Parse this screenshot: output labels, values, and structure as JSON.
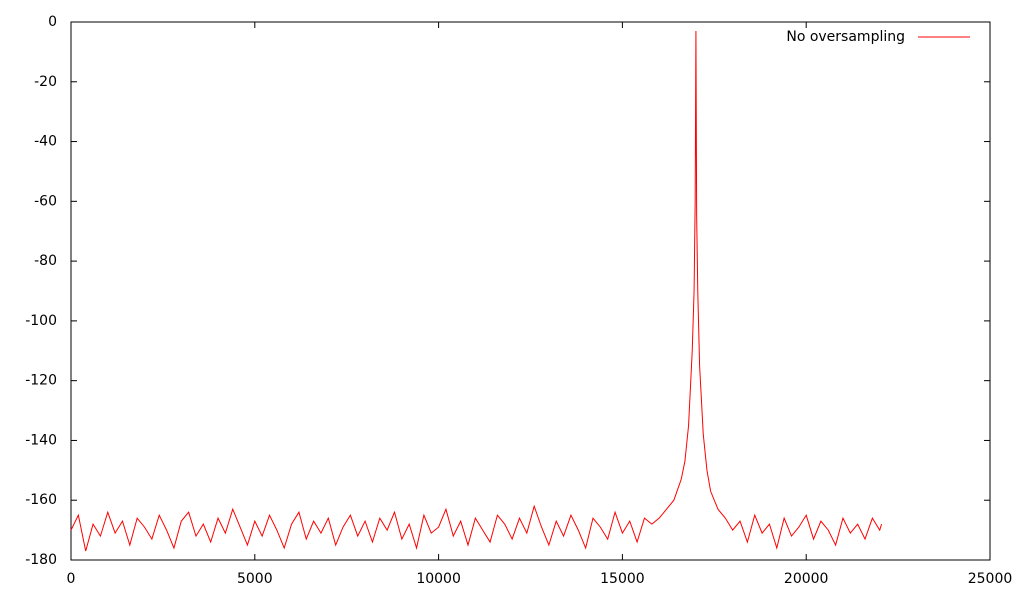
{
  "chart_data": {
    "type": "line",
    "xlim": [
      0,
      25000
    ],
    "xticks": [
      0,
      5000,
      10000,
      15000,
      20000,
      25000
    ],
    "ylim": [
      -180,
      0
    ],
    "yticks": [
      0,
      -20,
      -40,
      -60,
      -80,
      -100,
      -120,
      -140,
      -160,
      -180
    ],
    "grid": false,
    "legend": "top-right",
    "x": [
      0,
      200,
      400,
      600,
      800,
      1000,
      1200,
      1400,
      1600,
      1800,
      2000,
      2200,
      2400,
      2600,
      2800,
      3000,
      3200,
      3400,
      3600,
      3800,
      4000,
      4200,
      4400,
      4600,
      4800,
      5000,
      5200,
      5400,
      5600,
      5800,
      6000,
      6200,
      6400,
      6600,
      6800,
      7000,
      7200,
      7400,
      7600,
      7800,
      8000,
      8200,
      8400,
      8600,
      8800,
      9000,
      9200,
      9400,
      9600,
      9800,
      10000,
      10200,
      10400,
      10600,
      10800,
      11000,
      11200,
      11400,
      11600,
      11800,
      12000,
      12200,
      12400,
      12600,
      12800,
      13000,
      13200,
      13400,
      13600,
      13800,
      14000,
      14200,
      14400,
      14600,
      14800,
      15000,
      15200,
      15400,
      15600,
      15800,
      16000,
      16200,
      16400,
      16600,
      16700,
      16800,
      16900,
      16950,
      16980,
      17000,
      17020,
      17050,
      17100,
      17200,
      17300,
      17400,
      17600,
      17800,
      18000,
      18200,
      18400,
      18600,
      18800,
      19000,
      19200,
      19400,
      19600,
      19800,
      20000,
      20200,
      20400,
      20600,
      20800,
      21000,
      21200,
      21400,
      21600,
      21800,
      22000,
      22050
    ],
    "series": [
      {
        "name": "No oversampling",
        "color": "#ff0000",
        "values": [
          -170,
          -165,
          -177,
          -168,
          -172,
          -164,
          -171,
          -167,
          -175,
          -166,
          -169,
          -173,
          -165,
          -170,
          -176,
          -167,
          -164,
          -172,
          -168,
          -174,
          -166,
          -171,
          -163,
          -169,
          -175,
          -167,
          -172,
          -165,
          -170,
          -176,
          -168,
          -164,
          -173,
          -167,
          -171,
          -166,
          -175,
          -169,
          -165,
          -172,
          -167,
          -174,
          -166,
          -170,
          -164,
          -173,
          -168,
          -176,
          -165,
          -171,
          -169,
          -163,
          -172,
          -167,
          -175,
          -166,
          -170,
          -174,
          -165,
          -168,
          -173,
          -166,
          -171,
          -162,
          -169,
          -175,
          -167,
          -172,
          -165,
          -170,
          -176,
          -166,
          -169,
          -173,
          -164,
          -171,
          -167,
          -174,
          -166,
          -168,
          -166,
          -163,
          -160,
          -153,
          -147,
          -135,
          -110,
          -90,
          -60,
          -3,
          -65,
          -90,
          -115,
          -138,
          -150,
          -157,
          -163,
          -166,
          -170,
          -167,
          -174,
          -165,
          -171,
          -168,
          -176,
          -166,
          -172,
          -169,
          -165,
          -173,
          -167,
          -170,
          -175,
          -166,
          -171,
          -168,
          -173,
          -166,
          -170,
          -168
        ]
      }
    ]
  }
}
